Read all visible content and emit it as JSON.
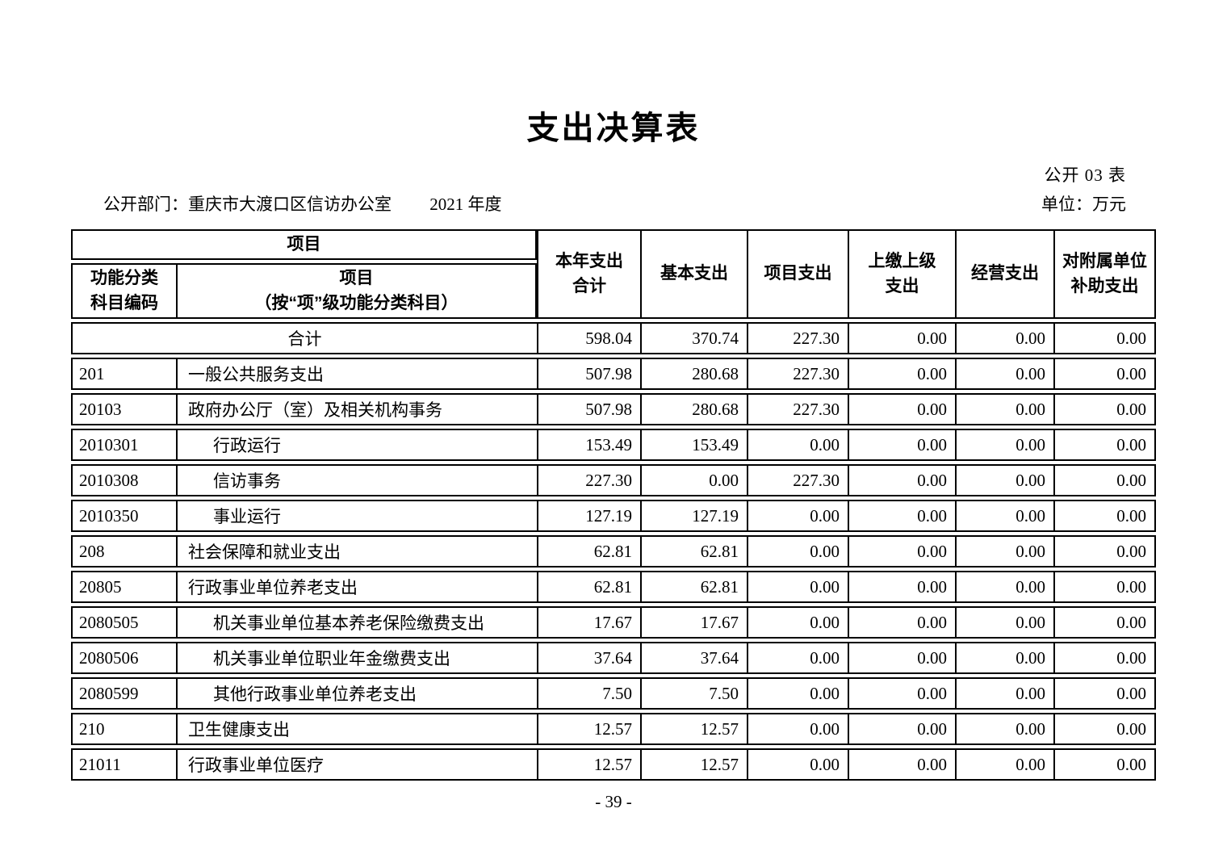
{
  "page": {
    "title": "支出决算表",
    "table_no": "公开 03 表",
    "department": "公开部门：重庆市大渡口区信访办公室",
    "year": "2021 年度",
    "unit": "单位：万元",
    "page_number": "- 39 -"
  },
  "table": {
    "header": {
      "project_group": "项目",
      "code_label": "功能分类\n科目编码",
      "name_label": "项目\n（按“项”级功能分类科目）",
      "cols": [
        "本年支出\n合计",
        "基本支出",
        "项目支出",
        "上缴上级\n支出",
        "经营支出",
        "对附属单位\n补助支出"
      ]
    },
    "rows": [
      {
        "code": "",
        "name": "合计",
        "level": 0,
        "values": [
          "598.04",
          "370.74",
          "227.30",
          "0.00",
          "0.00",
          "0.00"
        ]
      },
      {
        "code": "201",
        "name": "一般公共服务支出",
        "level": 1,
        "values": [
          "507.98",
          "280.68",
          "227.30",
          "0.00",
          "0.00",
          "0.00"
        ]
      },
      {
        "code": "20103",
        "name": "政府办公厅（室）及相关机构事务",
        "level": 2,
        "values": [
          "507.98",
          "280.68",
          "227.30",
          "0.00",
          "0.00",
          "0.00"
        ]
      },
      {
        "code": "2010301",
        "name": "行政运行",
        "level": 3,
        "values": [
          "153.49",
          "153.49",
          "0.00",
          "0.00",
          "0.00",
          "0.00"
        ]
      },
      {
        "code": "2010308",
        "name": "信访事务",
        "level": 3,
        "values": [
          "227.30",
          "0.00",
          "227.30",
          "0.00",
          "0.00",
          "0.00"
        ]
      },
      {
        "code": "2010350",
        "name": "事业运行",
        "level": 3,
        "values": [
          "127.19",
          "127.19",
          "0.00",
          "0.00",
          "0.00",
          "0.00"
        ]
      },
      {
        "code": "208",
        "name": "社会保障和就业支出",
        "level": 1,
        "values": [
          "62.81",
          "62.81",
          "0.00",
          "0.00",
          "0.00",
          "0.00"
        ]
      },
      {
        "code": "20805",
        "name": "行政事业单位养老支出",
        "level": 2,
        "values": [
          "62.81",
          "62.81",
          "0.00",
          "0.00",
          "0.00",
          "0.00"
        ]
      },
      {
        "code": "2080505",
        "name": "机关事业单位基本养老保险缴费支出",
        "level": 3,
        "values": [
          "17.67",
          "17.67",
          "0.00",
          "0.00",
          "0.00",
          "0.00"
        ]
      },
      {
        "code": "2080506",
        "name": "机关事业单位职业年金缴费支出",
        "level": 3,
        "values": [
          "37.64",
          "37.64",
          "0.00",
          "0.00",
          "0.00",
          "0.00"
        ]
      },
      {
        "code": "2080599",
        "name": "其他行政事业单位养老支出",
        "level": 3,
        "values": [
          "7.50",
          "7.50",
          "0.00",
          "0.00",
          "0.00",
          "0.00"
        ]
      },
      {
        "code": "210",
        "name": "卫生健康支出",
        "level": 1,
        "values": [
          "12.57",
          "12.57",
          "0.00",
          "0.00",
          "0.00",
          "0.00"
        ]
      },
      {
        "code": "21011",
        "name": "行政事业单位医疗",
        "level": 2,
        "values": [
          "12.57",
          "12.57",
          "0.00",
          "0.00",
          "0.00",
          "0.00"
        ]
      }
    ]
  }
}
